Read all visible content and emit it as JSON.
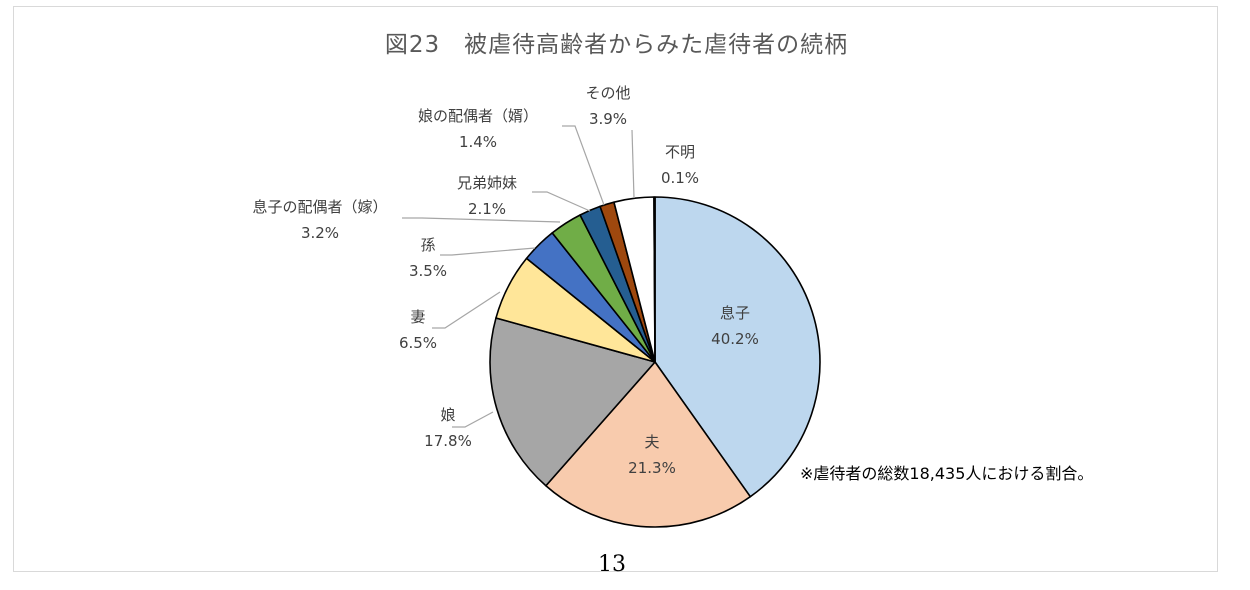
{
  "title": "図23　被虐待高齢者からみた虐待者の続柄",
  "note": "※虐待者の総数18,435人における割合。",
  "page_number": "13",
  "chart_data": {
    "type": "pie",
    "title": "図23　被虐待高齢者からみた虐待者の続柄",
    "slices": [
      {
        "label": "息子",
        "value": 40.2,
        "value_label": "40.2%",
        "color": "#bdd7ee"
      },
      {
        "label": "夫",
        "value": 21.3,
        "value_label": "21.3%",
        "color": "#f8cbad"
      },
      {
        "label": "娘",
        "value": 17.8,
        "value_label": "17.8%",
        "color": "#a6a6a6"
      },
      {
        "label": "妻",
        "value": 6.5,
        "value_label": "6.5%",
        "color": "#ffe699"
      },
      {
        "label": "孫",
        "value": 3.5,
        "value_label": "3.5%",
        "color": "#4472c4"
      },
      {
        "label": "息子の配偶者（嫁）",
        "value": 3.2,
        "value_label": "3.2%",
        "color": "#70ad47"
      },
      {
        "label": "兄弟姉妹",
        "value": 2.1,
        "value_label": "2.1%",
        "color": "#255e91"
      },
      {
        "label": "娘の配偶者（婿）",
        "value": 1.4,
        "value_label": "1.4%",
        "color": "#9e480e"
      },
      {
        "label": "その他",
        "value": 3.9,
        "value_label": "3.9%",
        "color": "#ffffff"
      },
      {
        "label": "不明",
        "value": 0.1,
        "value_label": "0.1%",
        "color": "#ffffff"
      }
    ],
    "slice_outline": "#000000",
    "leader_line_color": "#a6a6a6"
  }
}
